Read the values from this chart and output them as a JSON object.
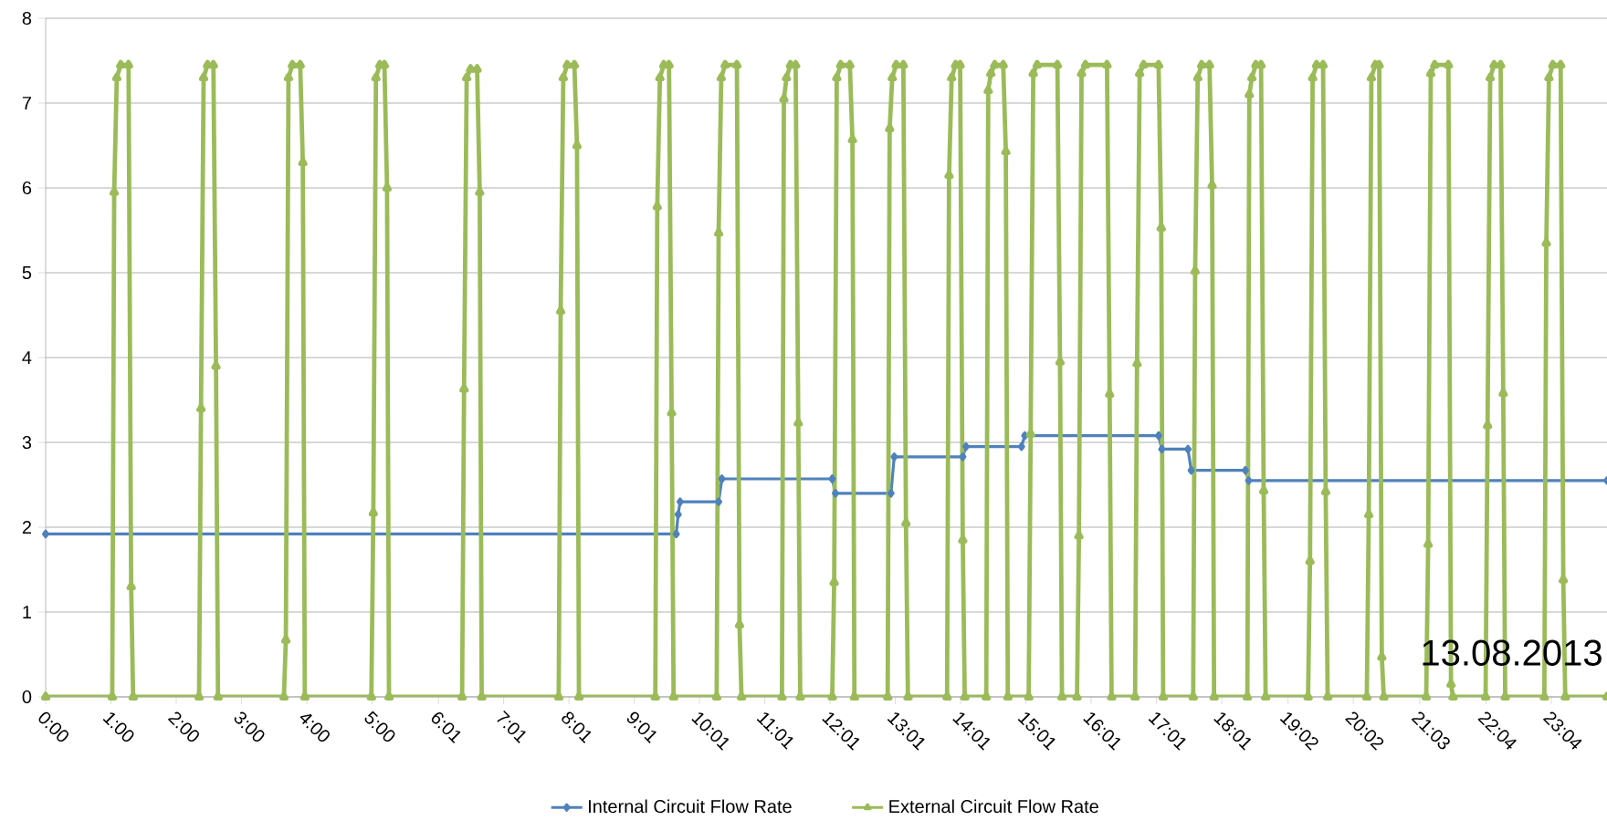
{
  "chart_data": {
    "type": "line",
    "series": [
      {
        "name": "Internal Circuit Flow Rate",
        "color": "#4f81bd",
        "marker": "diamond",
        "x": [
          0,
          9.66,
          9.69,
          9.72,
          10.31,
          10.36,
          12.05,
          12.1,
          12.95,
          13.0,
          14.05,
          14.1,
          14.95,
          15.0,
          17.05,
          17.1,
          17.5,
          17.55,
          18.38,
          18.43,
          23.92
        ],
        "values": [
          1.92,
          1.92,
          2.15,
          2.3,
          2.3,
          2.57,
          2.57,
          2.4,
          2.4,
          2.83,
          2.83,
          2.95,
          2.95,
          3.08,
          3.08,
          2.92,
          2.92,
          2.67,
          2.67,
          2.55,
          2.55
        ]
      },
      {
        "name": "External Circuit Flow Rate",
        "color": "#9bbb59",
        "marker": "triangle",
        "x": [
          0,
          1.02,
          1.05,
          1.09,
          1.15,
          1.27,
          1.31,
          1.34,
          2.35,
          2.38,
          2.42,
          2.48,
          2.57,
          2.61,
          2.64,
          3.65,
          3.68,
          3.72,
          3.78,
          3.9,
          3.94,
          3.97,
          4.99,
          5.02,
          5.06,
          5.12,
          5.19,
          5.23,
          5.26,
          6.38,
          6.41,
          6.45,
          6.51,
          6.61,
          6.65,
          6.68,
          7.86,
          7.89,
          7.93,
          7.99,
          8.1,
          8.14,
          8.17,
          9.34,
          9.37,
          9.41,
          9.47,
          9.55,
          9.59,
          9.62,
          10.28,
          10.31,
          10.35,
          10.41,
          10.59,
          10.63,
          10.66,
          11.28,
          11.31,
          11.35,
          11.41,
          11.49,
          11.53,
          11.56,
          12.05,
          12.08,
          12.12,
          12.18,
          12.32,
          12.36,
          12.39,
          12.9,
          12.93,
          12.97,
          13.03,
          13.14,
          13.18,
          13.21,
          13.81,
          13.84,
          13.88,
          13.94,
          14.01,
          14.05,
          14.08,
          14.41,
          14.44,
          14.48,
          14.54,
          14.67,
          14.71,
          14.74,
          15.06,
          15.09,
          15.13,
          15.19,
          15.5,
          15.54,
          15.57,
          15.8,
          15.83,
          15.87,
          15.93,
          16.26,
          16.3,
          16.33,
          16.69,
          16.72,
          16.76,
          16.82,
          17.05,
          17.09,
          17.12,
          17.58,
          17.61,
          17.65,
          17.71,
          17.83,
          17.87,
          17.9,
          18.41,
          18.44,
          18.48,
          18.54,
          18.62,
          18.66,
          18.69,
          19.34,
          19.37,
          19.41,
          19.47,
          19.57,
          19.61,
          19.64,
          20.24,
          20.27,
          20.31,
          20.37,
          20.43,
          20.47,
          20.5,
          21.15,
          21.18,
          21.22,
          21.28,
          21.49,
          21.53,
          21.56,
          22.06,
          22.09,
          22.13,
          22.19,
          22.29,
          22.33,
          22.36,
          22.96,
          22.99,
          23.03,
          23.09,
          23.21,
          23.25,
          23.28,
          23.92
        ],
        "values": [
          0,
          0,
          5.95,
          7.3,
          7.45,
          7.45,
          1.3,
          0,
          0,
          3.4,
          7.3,
          7.45,
          7.45,
          3.9,
          0,
          0,
          0.67,
          7.3,
          7.45,
          7.45,
          6.3,
          0,
          0,
          2.17,
          7.3,
          7.45,
          7.45,
          6.0,
          0,
          0,
          3.63,
          7.3,
          7.4,
          7.4,
          5.95,
          0,
          0,
          4.55,
          7.3,
          7.45,
          7.45,
          6.5,
          0,
          0,
          5.78,
          7.3,
          7.45,
          7.45,
          3.35,
          0,
          0,
          5.47,
          7.3,
          7.45,
          7.45,
          0.85,
          0,
          0,
          7.05,
          7.3,
          7.45,
          7.45,
          3.23,
          0,
          0,
          1.35,
          7.3,
          7.45,
          7.45,
          6.57,
          0,
          0,
          6.7,
          7.3,
          7.45,
          7.45,
          2.05,
          0,
          0,
          6.15,
          7.3,
          7.45,
          7.45,
          1.85,
          0,
          0,
          7.15,
          7.35,
          7.45,
          7.45,
          6.43,
          0,
          0,
          3.1,
          7.35,
          7.45,
          7.45,
          3.95,
          0,
          0,
          1.9,
          7.35,
          7.45,
          7.45,
          3.57,
          0,
          0,
          3.93,
          7.35,
          7.45,
          7.45,
          5.53,
          0,
          0,
          5.02,
          7.3,
          7.45,
          7.45,
          6.03,
          0,
          0,
          7.1,
          7.3,
          7.45,
          7.45,
          2.43,
          0,
          0,
          1.6,
          7.3,
          7.45,
          7.45,
          2.42,
          0,
          0,
          2.15,
          7.3,
          7.45,
          7.45,
          0.47,
          0,
          0,
          1.8,
          7.35,
          7.45,
          7.45,
          0.15,
          0,
          0,
          3.2,
          7.3,
          7.45,
          7.45,
          3.58,
          0,
          0,
          5.35,
          7.3,
          7.45,
          7.45,
          1.38,
          0,
          0
        ]
      }
    ],
    "xlim": [
      0,
      23.92
    ],
    "xticks": [
      {
        "value": 0,
        "label": "0:00"
      },
      {
        "value": 1,
        "label": "1:00"
      },
      {
        "value": 2,
        "label": "2:00"
      },
      {
        "value": 3,
        "label": "3:00"
      },
      {
        "value": 4,
        "label": "4:00"
      },
      {
        "value": 5,
        "label": "5:00"
      },
      {
        "value": 6.017,
        "label": "6:01"
      },
      {
        "value": 7.017,
        "label": "7:01"
      },
      {
        "value": 8.017,
        "label": "8:01"
      },
      {
        "value": 9.017,
        "label": "9:01"
      },
      {
        "value": 10.017,
        "label": "10:01"
      },
      {
        "value": 11.017,
        "label": "11:01"
      },
      {
        "value": 12.017,
        "label": "12:01"
      },
      {
        "value": 13.017,
        "label": "13:01"
      },
      {
        "value": 14.017,
        "label": "14:01"
      },
      {
        "value": 15.017,
        "label": "15:01"
      },
      {
        "value": 16.017,
        "label": "16:01"
      },
      {
        "value": 17.017,
        "label": "17:01"
      },
      {
        "value": 18.017,
        "label": "18:01"
      },
      {
        "value": 19.033,
        "label": "19:02"
      },
      {
        "value": 20.033,
        "label": "20:02"
      },
      {
        "value": 21.05,
        "label": "21:03"
      },
      {
        "value": 22.067,
        "label": "22:04"
      },
      {
        "value": 23.067,
        "label": "23:04"
      }
    ],
    "ylim": [
      0,
      8
    ],
    "yticks": [
      0,
      1,
      2,
      3,
      4,
      5,
      6,
      7,
      8
    ],
    "grid": "y",
    "legend": "bottom",
    "annotations": [
      "13.08.2013"
    ]
  }
}
